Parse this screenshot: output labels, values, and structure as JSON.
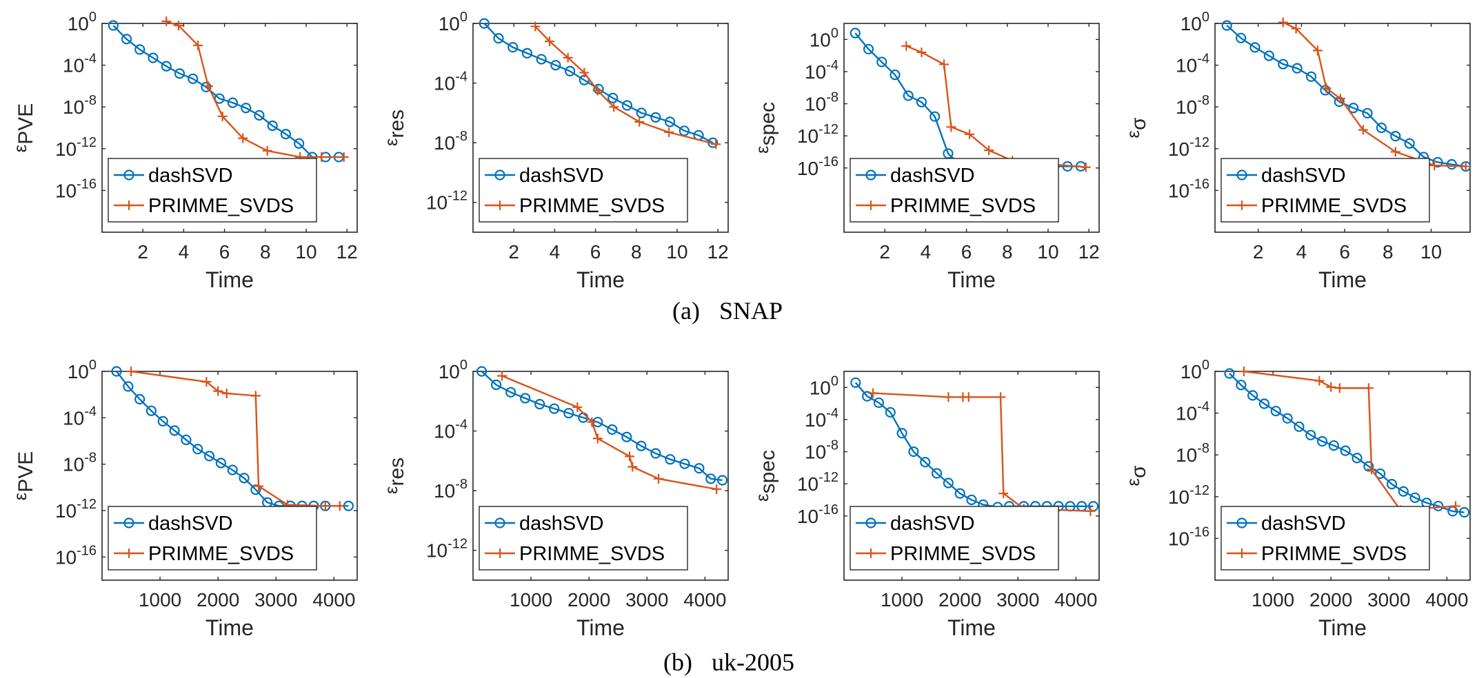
{
  "figure": {
    "captions": [
      {
        "label": "(a)",
        "text": "SNAP"
      },
      {
        "label": "(b)",
        "text": "uk-2005"
      }
    ]
  },
  "colors": {
    "dashSVD": "#0072BD",
    "PRIMME_SVDS": "#D95319",
    "axis": "#262626"
  },
  "chart_data": [
    {
      "type": "line",
      "row": 0,
      "xlabel": "Time",
      "ylabel": "ε_PVE",
      "ylabel_parts": {
        "sym": "ε",
        "sub": "PVE"
      },
      "yscale": "log",
      "xlim": [
        0,
        12.5
      ],
      "xticks": [
        2,
        4,
        6,
        8,
        10,
        12
      ],
      "ylim_exp": [
        -20,
        0
      ],
      "yticks_exp": [
        0,
        -4,
        -8,
        -12,
        -16
      ],
      "legend": "bottom-left",
      "series": [
        {
          "name": "dashSVD",
          "marker": "circle",
          "x": [
            0.55,
            1.2,
            1.85,
            2.5,
            3.15,
            3.8,
            4.45,
            5.1,
            5.75,
            6.4,
            7.05,
            7.7,
            8.35,
            9.0,
            9.65,
            10.3,
            10.95,
            11.6
          ],
          "y_exp": [
            -0.2,
            -1.5,
            -2.5,
            -3.3,
            -4.1,
            -4.8,
            -5.3,
            -6.1,
            -7.2,
            -7.6,
            -8.1,
            -8.8,
            -9.8,
            -10.6,
            -11.5,
            -12.8,
            -12.8,
            -12.8
          ]
        },
        {
          "name": "PRIMME_SVDS",
          "marker": "plus",
          "x": [
            3.15,
            3.75,
            4.7,
            5.2,
            5.9,
            6.9,
            8.1,
            9.7,
            10.75,
            11.85
          ],
          "y_exp": [
            0.2,
            -0.2,
            -2.1,
            -6.0,
            -8.9,
            -11.0,
            -12.2,
            -12.8,
            -12.8,
            -12.8
          ]
        }
      ]
    },
    {
      "type": "line",
      "row": 0,
      "xlabel": "Time",
      "ylabel": "ε_res",
      "ylabel_parts": {
        "sym": "ε",
        "sub": "res"
      },
      "yscale": "log",
      "xlim": [
        0,
        12.5
      ],
      "xticks": [
        2,
        4,
        6,
        8,
        10,
        12
      ],
      "ylim_exp": [
        -14,
        0
      ],
      "yticks_exp": [
        0,
        -4,
        -8,
        -12
      ],
      "legend": "bottom-left",
      "series": [
        {
          "name": "dashSVD",
          "marker": "circle",
          "x": [
            0.55,
            1.25,
            1.95,
            2.65,
            3.35,
            4.05,
            4.75,
            5.45,
            6.15,
            6.85,
            7.55,
            8.25,
            8.95,
            9.65,
            10.35,
            11.05,
            11.75
          ],
          "y_exp": [
            0.0,
            -1.0,
            -1.6,
            -2.0,
            -2.4,
            -2.8,
            -3.2,
            -3.8,
            -4.4,
            -5.0,
            -5.5,
            -6.0,
            -6.3,
            -6.6,
            -7.2,
            -7.5,
            -8.0
          ]
        },
        {
          "name": "PRIMME_SVDS",
          "marker": "plus",
          "x": [
            3.05,
            3.75,
            4.65,
            5.45,
            6.1,
            6.9,
            8.15,
            9.6,
            11.9
          ],
          "y_exp": [
            -0.2,
            -1.2,
            -2.3,
            -3.3,
            -4.5,
            -5.6,
            -6.6,
            -7.3,
            -8.1
          ]
        }
      ]
    },
    {
      "type": "line",
      "row": 0,
      "xlabel": "Time",
      "ylabel": "ε_spec",
      "ylabel_parts": {
        "sym": "ε",
        "sub": "spec"
      },
      "yscale": "log",
      "xlim": [
        0,
        12.5
      ],
      "xticks": [
        2,
        4,
        6,
        8,
        10,
        12
      ],
      "ylim_exp": [
        -24,
        2
      ],
      "yticks_exp": [
        0,
        -4,
        -8,
        -12,
        -16
      ],
      "legend": "bottom-left",
      "series": [
        {
          "name": "dashSVD",
          "marker": "circle",
          "x": [
            0.55,
            1.2,
            1.85,
            2.5,
            3.15,
            3.8,
            4.45,
            5.1,
            5.75,
            6.4,
            7.05,
            7.7,
            8.35,
            9.0,
            9.65,
            10.3,
            10.95,
            11.6
          ],
          "y_exp": [
            0.8,
            -1.2,
            -2.8,
            -4.4,
            -7.0,
            -7.8,
            -9.6,
            -14.2,
            -15.8,
            -15.8,
            -15.8,
            -15.8,
            -15.8,
            -15.8,
            -15.8,
            -15.8,
            -15.8,
            -15.8
          ]
        },
        {
          "name": "PRIMME_SVDS",
          "marker": "plus",
          "x": [
            3.05,
            3.8,
            4.9,
            5.25,
            6.15,
            7.1,
            8.25,
            9.9,
            11.85
          ],
          "y_exp": [
            -0.8,
            -1.6,
            -3.1,
            -10.9,
            -11.8,
            -13.8,
            -15.1,
            -15.5,
            -15.9
          ]
        }
      ]
    },
    {
      "type": "line",
      "row": 0,
      "xlabel": "Time",
      "ylabel": "ε_σ",
      "ylabel_parts": {
        "sym": "ε",
        "sub": "σ"
      },
      "yscale": "log",
      "xlim": [
        0,
        11.8
      ],
      "xticks": [
        2,
        4,
        6,
        8,
        10
      ],
      "ylim_exp": [
        -20,
        0
      ],
      "yticks_exp": [
        0,
        -4,
        -8,
        -12,
        -16
      ],
      "legend": "bottom-left",
      "series": [
        {
          "name": "dashSVD",
          "marker": "circle",
          "x": [
            0.55,
            1.2,
            1.85,
            2.5,
            3.15,
            3.8,
            4.45,
            5.1,
            5.75,
            6.4,
            7.05,
            7.7,
            8.35,
            9.0,
            9.65,
            10.3,
            10.95,
            11.6
          ],
          "y_exp": [
            -0.2,
            -1.4,
            -2.3,
            -3.1,
            -3.9,
            -4.3,
            -5.1,
            -6.4,
            -7.5,
            -8.1,
            -8.6,
            -10.0,
            -10.8,
            -11.5,
            -12.8,
            -13.3,
            -13.5,
            -13.7
          ]
        },
        {
          "name": "PRIMME_SVDS",
          "marker": "plus",
          "x": [
            3.15,
            3.75,
            4.75,
            5.15,
            5.8,
            6.85,
            8.35,
            10.15,
            11.6
          ],
          "y_exp": [
            0.1,
            -0.5,
            -2.6,
            -6.2,
            -7.2,
            -10.2,
            -12.3,
            -13.6,
            -13.7
          ]
        }
      ]
    },
    {
      "type": "line",
      "row": 1,
      "xlabel": "Time",
      "ylabel": "ε_PVE",
      "ylabel_parts": {
        "sym": "ε",
        "sub": "PVE"
      },
      "yscale": "log",
      "xlim": [
        0,
        4400
      ],
      "xticks": [
        1000,
        2000,
        3000,
        4000
      ],
      "ylim_exp": [
        -18,
        0
      ],
      "yticks_exp": [
        0,
        -4,
        -8,
        -12,
        -16
      ],
      "legend": "bottom-left",
      "series": [
        {
          "name": "dashSVD",
          "marker": "circle",
          "x": [
            250,
            450,
            650,
            850,
            1050,
            1250,
            1450,
            1650,
            1850,
            2050,
            2250,
            2450,
            2650,
            2850,
            3050,
            3250,
            3450,
            3650,
            3850,
            4250
          ],
          "y_exp": [
            0.0,
            -1.3,
            -2.4,
            -3.4,
            -4.3,
            -5.1,
            -5.9,
            -6.7,
            -7.3,
            -7.9,
            -8.5,
            -9.2,
            -10.2,
            -11.3,
            -11.6,
            -11.6,
            -11.6,
            -11.6,
            -11.6,
            -11.6
          ]
        },
        {
          "name": "PRIMME_SVDS",
          "marker": "plus",
          "x": [
            500,
            1800,
            2000,
            2150,
            2650,
            2700,
            3200,
            3850,
            4100
          ],
          "y_exp": [
            0.0,
            -0.9,
            -1.7,
            -1.9,
            -2.1,
            -9.9,
            -11.5,
            -11.6,
            -11.6
          ]
        }
      ]
    },
    {
      "type": "line",
      "row": 1,
      "xlabel": "Time",
      "ylabel": "ε_res",
      "ylabel_parts": {
        "sym": "ε",
        "sub": "res"
      },
      "yscale": "log",
      "xlim": [
        0,
        4400
      ],
      "xticks": [
        1000,
        2000,
        3000,
        4000
      ],
      "ylim_exp": [
        -14,
        0
      ],
      "yticks_exp": [
        0,
        -4,
        -8,
        -12
      ],
      "legend": "bottom-left",
      "series": [
        {
          "name": "dashSVD",
          "marker": "circle",
          "x": [
            150,
            400,
            650,
            900,
            1150,
            1400,
            1650,
            1900,
            2150,
            2400,
            2650,
            2900,
            3150,
            3400,
            3650,
            3900,
            4100,
            4300
          ],
          "y_exp": [
            0.0,
            -0.9,
            -1.4,
            -1.8,
            -2.2,
            -2.5,
            -2.8,
            -3.1,
            -3.4,
            -3.9,
            -4.4,
            -5.0,
            -5.5,
            -5.9,
            -6.2,
            -6.5,
            -7.2,
            -7.3
          ]
        },
        {
          "name": "PRIMME_SVDS",
          "marker": "plus",
          "x": [
            500,
            1800,
            2050,
            2150,
            2700,
            2750,
            3200,
            4200
          ],
          "y_exp": [
            -0.3,
            -2.4,
            -3.4,
            -4.5,
            -5.7,
            -6.4,
            -7.2,
            -7.9
          ]
        }
      ]
    },
    {
      "type": "line",
      "row": 1,
      "xlabel": "Time",
      "ylabel": "ε_spec",
      "ylabel_parts": {
        "sym": "ε",
        "sub": "spec"
      },
      "yscale": "log",
      "xlim": [
        0,
        4400
      ],
      "xticks": [
        1000,
        2000,
        3000,
        4000
      ],
      "ylim_exp": [
        -24,
        2
      ],
      "yticks_exp": [
        0,
        -4,
        -8,
        -12,
        -16
      ],
      "legend": "bottom-left",
      "series": [
        {
          "name": "dashSVD",
          "marker": "circle",
          "x": [
            200,
            400,
            600,
            800,
            1000,
            1200,
            1400,
            1600,
            1800,
            2000,
            2200,
            2400,
            2650,
            2850,
            3100,
            3300,
            3500,
            3700,
            3900,
            4100,
            4300
          ],
          "y_exp": [
            0.6,
            -1.1,
            -1.9,
            -3.1,
            -5.7,
            -8.0,
            -9.3,
            -10.7,
            -11.9,
            -13.2,
            -14.0,
            -14.6,
            -14.9,
            -14.8,
            -14.8,
            -14.8,
            -14.8,
            -14.8,
            -14.8,
            -14.8,
            -14.8
          ]
        },
        {
          "name": "PRIMME_SVDS",
          "marker": "plus",
          "x": [
            500,
            1800,
            2050,
            2150,
            2700,
            2750,
            3100,
            4250
          ],
          "y_exp": [
            -0.7,
            -1.2,
            -1.2,
            -1.2,
            -1.2,
            -13.2,
            -15.1,
            -15.4
          ]
        }
      ]
    },
    {
      "type": "line",
      "row": 1,
      "xlabel": "Time",
      "ylabel": "ε_σ",
      "ylabel_parts": {
        "sym": "ε",
        "sub": "σ"
      },
      "yscale": "log",
      "xlim": [
        0,
        4400
      ],
      "xticks": [
        1000,
        2000,
        3000,
        4000
      ],
      "ylim_exp": [
        -20,
        0
      ],
      "yticks_exp": [
        0,
        -4,
        -8,
        -12,
        -16
      ],
      "legend": "bottom-left",
      "series": [
        {
          "name": "dashSVD",
          "marker": "circle",
          "x": [
            250,
            450,
            650,
            850,
            1050,
            1250,
            1450,
            1650,
            1850,
            2050,
            2250,
            2450,
            2650,
            2850,
            3050,
            3250,
            3450,
            3650,
            3850,
            4100,
            4300
          ],
          "y_exp": [
            -0.2,
            -1.3,
            -2.3,
            -3.1,
            -3.8,
            -4.5,
            -5.3,
            -6.1,
            -6.7,
            -7.1,
            -7.6,
            -8.3,
            -9.1,
            -9.8,
            -10.8,
            -11.5,
            -12.1,
            -12.6,
            -12.9,
            -13.4,
            -13.5
          ]
        },
        {
          "name": "PRIMME_SVDS",
          "marker": "plus",
          "x": [
            500,
            1800,
            2000,
            2150,
            2650,
            2700,
            3200,
            4150
          ],
          "y_exp": [
            0.0,
            -0.9,
            -1.5,
            -1.6,
            -1.6,
            -9.4,
            -13.3,
            -12.9
          ]
        }
      ]
    }
  ]
}
